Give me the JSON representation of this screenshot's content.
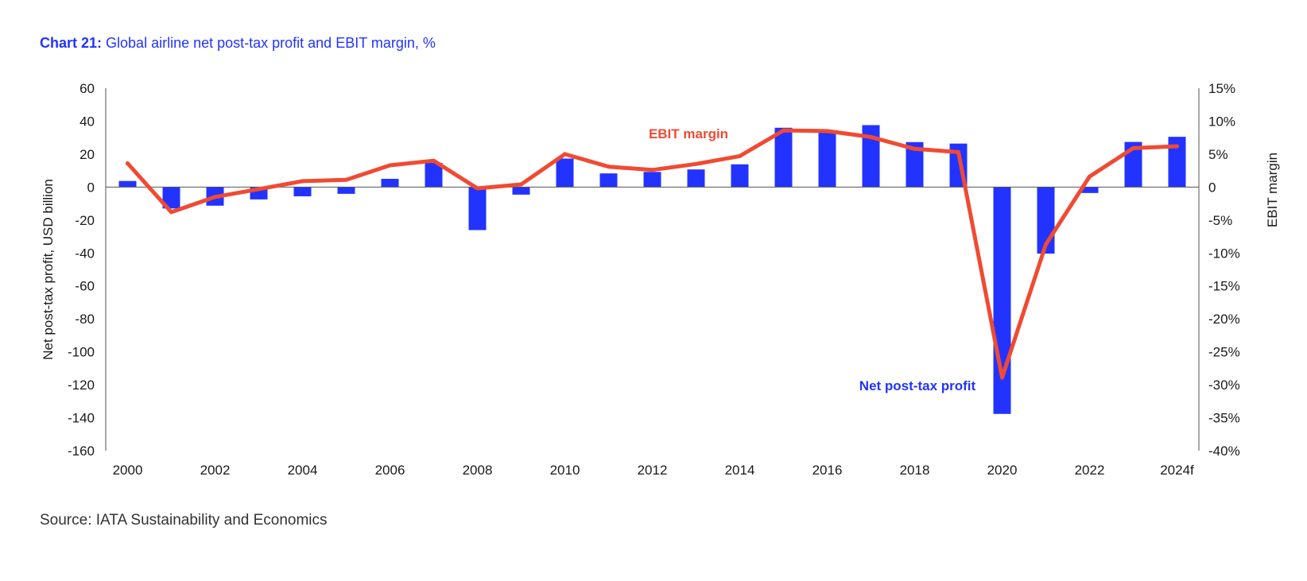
{
  "title": {
    "prefix": "Chart 21:",
    "text": " Global airline net post-tax profit and EBIT margin, %"
  },
  "source": "Source: IATA Sustainability and Economics",
  "colors": {
    "bars": "#2233ff",
    "line": "#f04a32",
    "axis": "#555555",
    "text": "#1a1a1a",
    "title": "#2233ff"
  },
  "chart_data": {
    "type": "bar+line",
    "title": "Global airline net post-tax profit and EBIT margin, %",
    "categories": [
      "2000",
      "2001",
      "2002",
      "2003",
      "2004",
      "2005",
      "2006",
      "2007",
      "2008",
      "2009",
      "2010",
      "2011",
      "2012",
      "2013",
      "2014",
      "2015",
      "2016",
      "2017",
      "2018",
      "2019",
      "2020",
      "2021",
      "2022",
      "2023",
      "2024f"
    ],
    "x_tick_labels": [
      "2000",
      "2002",
      "2004",
      "2006",
      "2008",
      "2010",
      "2012",
      "2014",
      "2016",
      "2018",
      "2020",
      "2022",
      "2024f"
    ],
    "series": [
      {
        "name": "Net post-tax profit",
        "type": "bar",
        "axis": "left",
        "values": [
          3.7,
          -13.0,
          -11.3,
          -7.5,
          -5.6,
          -4.1,
          5.0,
          14.7,
          -26.1,
          -4.6,
          17.3,
          8.3,
          9.2,
          10.7,
          13.8,
          36.0,
          34.2,
          37.6,
          27.3,
          26.4,
          -137.7,
          -40.4,
          -3.6,
          27.4,
          30.5
        ]
      },
      {
        "name": "EBIT margin",
        "type": "line",
        "axis": "right",
        "values": [
          3.6,
          -3.8,
          -1.5,
          -0.3,
          0.9,
          1.1,
          3.3,
          4.0,
          -0.2,
          0.4,
          5.0,
          3.1,
          2.6,
          3.5,
          4.7,
          8.6,
          8.5,
          7.6,
          5.8,
          5.3,
          -28.9,
          -8.7,
          1.6,
          5.9,
          6.2
        ]
      }
    ],
    "y_left": {
      "label": "Net post-tax profit, USD billion",
      "lim": [
        -160,
        60
      ],
      "ticks": [
        60,
        40,
        20,
        0,
        -20,
        -40,
        -60,
        -80,
        -100,
        -120,
        -140,
        -160
      ]
    },
    "y_right": {
      "label": "EBIT margin",
      "lim": [
        -40,
        15
      ],
      "ticks": [
        "15%",
        "10%",
        "5%",
        "0",
        "-5%",
        "-10%",
        "-15%",
        "-20%",
        "-25%",
        "-30%",
        "-35%",
        "-40%"
      ]
    },
    "annotations": [
      {
        "text": "EBIT margin",
        "series": "EBIT margin"
      },
      {
        "text": "Net post-tax profit",
        "series": "Net post-tax profit"
      }
    ],
    "grid": false
  }
}
